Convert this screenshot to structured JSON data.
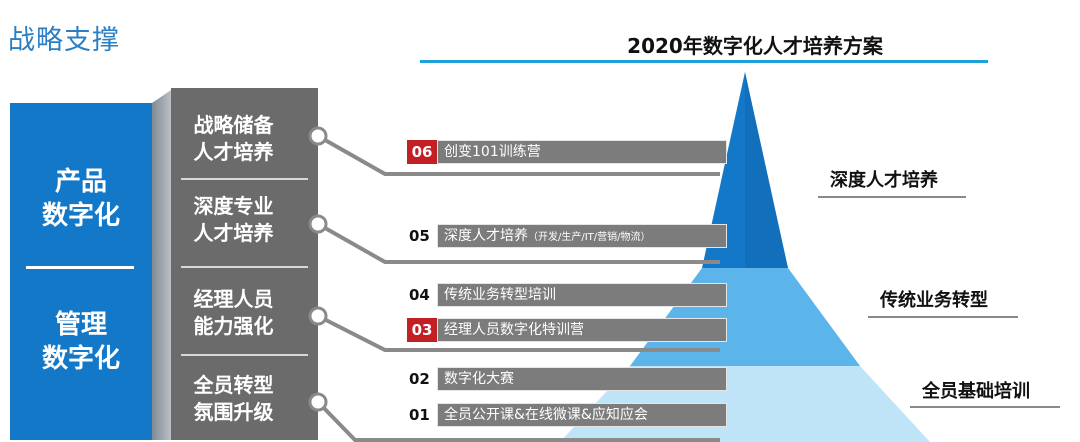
{
  "section_title": "战略支撑",
  "plan_title": "2020年数字化人才培养方案",
  "blue_column": [
    "产品\n数字化",
    "管理\n数字化"
  ],
  "grey_column": [
    "战略储备\n人才培养",
    "深度专业\n人才培养",
    "经理人员\n能力强化",
    "全员转型\n氛围升级"
  ],
  "programs": [
    {
      "num": "06",
      "highlight": true,
      "text": "创变101训练营",
      "note": ""
    },
    {
      "num": "05",
      "highlight": false,
      "text": "深度人才培养",
      "note": "（开发/生产/IT/营销/物流）"
    },
    {
      "num": "04",
      "highlight": false,
      "text": "传统业务转型培训",
      "note": ""
    },
    {
      "num": "03",
      "highlight": true,
      "text": "经理人员数字化特训营",
      "note": ""
    },
    {
      "num": "02",
      "highlight": false,
      "text": "数字化大赛",
      "note": ""
    },
    {
      "num": "01",
      "highlight": false,
      "text": "全员公开课&在线微课&应知应会",
      "note": ""
    }
  ],
  "levels": [
    "深度人才培养",
    "传统业务转型",
    "全员基础培训"
  ],
  "colors": {
    "accent_blue": "#1378c8",
    "pyramid_top": "#1378c8",
    "pyramid_mid": "#5bb4ea",
    "pyramid_bottom": "#bfe3f7",
    "highlight_red": "#c32026",
    "bar_grey": "#7c7c7c"
  }
}
